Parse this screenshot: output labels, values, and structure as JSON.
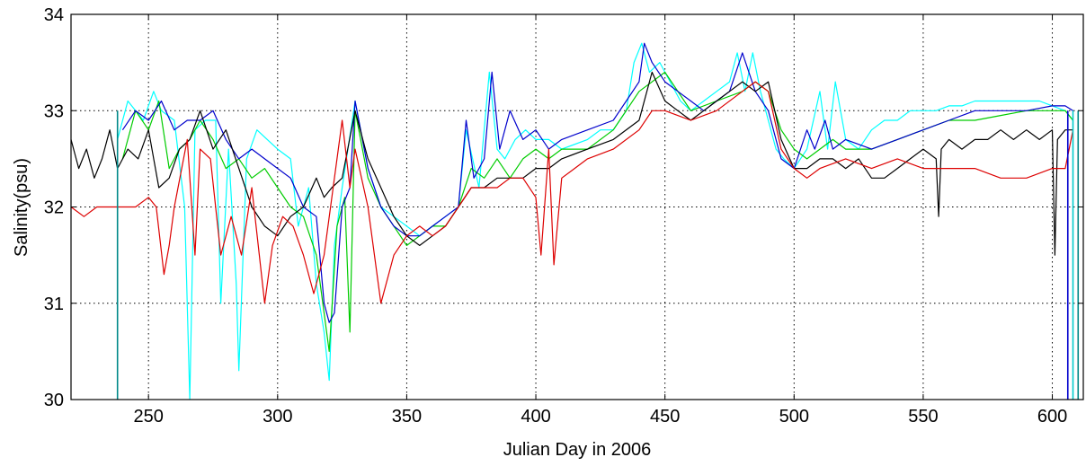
{
  "chart_data": {
    "type": "line",
    "title": "",
    "xlabel": "Julian Day in 2006",
    "ylabel": "Salinity(psu)",
    "xlim": [
      220,
      612
    ],
    "ylim": [
      30,
      34
    ],
    "xticks": [
      250,
      300,
      350,
      400,
      450,
      500,
      550,
      600
    ],
    "yticks": [
      30,
      31,
      32,
      33,
      34
    ],
    "xtick_labels": [
      "250",
      "300",
      "350",
      "400",
      "450",
      "500",
      "550",
      "600"
    ],
    "ytick_labels": [
      "30",
      "31",
      "32",
      "33",
      "34"
    ],
    "grid": true,
    "legend": false,
    "series": [
      {
        "color": "#00ffff",
        "x": [
          238,
          242,
          248,
          252,
          255,
          260,
          264,
          266,
          268,
          272,
          276,
          278,
          281,
          284,
          285,
          288,
          292,
          296,
          300,
          305,
          308,
          312,
          315,
          318,
          320,
          322,
          325,
          330,
          335,
          340,
          345,
          350,
          355,
          360,
          365,
          370,
          373,
          378,
          382,
          385,
          388,
          392,
          396,
          400,
          405,
          410,
          420,
          425,
          430,
          435,
          438,
          441,
          444,
          448,
          452,
          456,
          460,
          465,
          470,
          475,
          478,
          481,
          484,
          487,
          490,
          493,
          496,
          500,
          505,
          510,
          513,
          516,
          520,
          525,
          530,
          535,
          540,
          545,
          550,
          555,
          560,
          565,
          570,
          575,
          580,
          585,
          590,
          595,
          600,
          605,
          608
        ],
        "y": [
          32.7,
          33.1,
          32.9,
          33.2,
          33.0,
          32.9,
          32.0,
          30.0,
          32.8,
          32.9,
          32.9,
          31.0,
          32.6,
          31.2,
          30.3,
          32.5,
          32.8,
          32.7,
          32.6,
          32.5,
          31.8,
          32.2,
          31.2,
          30.7,
          30.2,
          31.6,
          32.2,
          33.1,
          32.4,
          32.0,
          31.9,
          31.8,
          31.7,
          31.8,
          31.9,
          32.0,
          32.8,
          32.2,
          33.4,
          32.6,
          32.5,
          32.7,
          32.8,
          32.7,
          32.7,
          32.6,
          32.7,
          32.8,
          32.8,
          33.0,
          33.5,
          33.7,
          33.4,
          33.5,
          33.3,
          33.1,
          33.0,
          33.1,
          33.2,
          33.3,
          33.6,
          33.2,
          33.6,
          33.2,
          32.9,
          32.6,
          32.5,
          32.4,
          32.6,
          33.2,
          32.6,
          33.3,
          32.7,
          32.6,
          32.8,
          32.9,
          32.9,
          33.0,
          33.0,
          33.0,
          33.05,
          33.05,
          33.1,
          33.1,
          33.1,
          33.1,
          33.1,
          33.1,
          33.05,
          33.0,
          32.9
        ]
      },
      {
        "color": "#00cc00",
        "x": [
          240,
          245,
          250,
          254,
          258,
          262,
          266,
          270,
          275,
          280,
          285,
          290,
          295,
          300,
          305,
          310,
          315,
          320,
          323,
          326,
          328,
          330,
          335,
          340,
          345,
          350,
          355,
          360,
          365,
          370,
          375,
          380,
          385,
          390,
          395,
          400,
          405,
          410,
          420,
          430,
          440,
          450,
          460,
          470,
          480,
          485,
          490,
          495,
          500,
          505,
          510,
          515,
          520,
          530,
          540,
          550,
          560,
          570,
          580,
          590,
          600,
          605,
          608
        ],
        "y": [
          32.5,
          33.0,
          32.8,
          33.1,
          32.4,
          32.6,
          32.7,
          32.9,
          32.7,
          32.4,
          32.5,
          32.3,
          32.4,
          32.2,
          32.0,
          31.9,
          31.5,
          30.5,
          31.8,
          32.1,
          30.7,
          33.0,
          32.3,
          32.0,
          31.8,
          31.6,
          31.7,
          31.8,
          31.8,
          32.0,
          32.4,
          32.3,
          32.5,
          32.3,
          32.5,
          32.6,
          32.5,
          32.6,
          32.6,
          32.8,
          33.2,
          33.4,
          33.0,
          33.1,
          33.2,
          33.3,
          33.2,
          32.8,
          32.6,
          32.5,
          32.6,
          32.7,
          32.6,
          32.6,
          32.7,
          32.8,
          32.9,
          32.9,
          32.95,
          33.0,
          33.0,
          33.0,
          32.9
        ]
      },
      {
        "color": "#0000cc",
        "x": [
          240,
          245,
          250,
          255,
          260,
          265,
          270,
          275,
          280,
          285,
          290,
          295,
          300,
          305,
          310,
          315,
          318,
          320,
          322,
          325,
          328,
          330,
          335,
          340,
          345,
          350,
          355,
          360,
          365,
          370,
          373,
          376,
          380,
          383,
          386,
          390,
          395,
          400,
          405,
          410,
          420,
          430,
          435,
          440,
          442,
          445,
          450,
          455,
          460,
          465,
          470,
          475,
          480,
          485,
          490,
          495,
          500,
          505,
          508,
          512,
          515,
          520,
          530,
          540,
          550,
          560,
          570,
          580,
          590,
          600,
          605,
          608
        ],
        "y": [
          32.8,
          33.0,
          32.9,
          33.1,
          32.8,
          32.9,
          32.9,
          33.0,
          32.7,
          32.5,
          32.6,
          32.5,
          32.4,
          32.3,
          32.0,
          31.9,
          31.0,
          30.8,
          30.9,
          32.0,
          32.2,
          33.1,
          32.4,
          32.0,
          31.8,
          31.7,
          31.7,
          31.8,
          31.9,
          32.0,
          32.9,
          32.3,
          32.5,
          33.4,
          32.6,
          33.0,
          32.7,
          32.8,
          32.6,
          32.7,
          32.8,
          32.9,
          33.1,
          33.3,
          33.7,
          33.5,
          33.3,
          33.2,
          33.1,
          33.0,
          33.1,
          33.2,
          33.6,
          33.2,
          33.0,
          32.5,
          32.4,
          32.8,
          32.6,
          32.9,
          32.6,
          32.7,
          32.6,
          32.7,
          32.8,
          32.9,
          33.0,
          33.0,
          33.0,
          33.05,
          33.05,
          33.0
        ]
      },
      {
        "color": "#000000",
        "x": [
          220,
          223,
          226,
          229,
          232,
          235,
          238,
          242,
          246,
          250,
          254,
          258,
          262,
          266,
          270,
          275,
          280,
          285,
          290,
          295,
          300,
          305,
          310,
          315,
          318,
          321,
          325,
          330,
          335,
          340,
          345,
          350,
          355,
          360,
          365,
          370,
          375,
          380,
          385,
          390,
          395,
          400,
          405,
          410,
          420,
          430,
          440,
          445,
          450,
          455,
          460,
          465,
          470,
          475,
          480,
          485,
          490,
          495,
          500,
          505,
          510,
          515,
          520,
          525,
          530,
          535,
          540,
          545,
          550,
          555,
          556,
          557,
          560,
          565,
          570,
          575,
          580,
          585,
          590,
          595,
          600,
          601,
          602,
          605,
          608
        ],
        "y": [
          32.7,
          32.4,
          32.6,
          32.3,
          32.5,
          32.8,
          32.4,
          32.6,
          32.5,
          32.8,
          32.2,
          32.3,
          32.6,
          32.7,
          33.0,
          32.6,
          32.8,
          32.4,
          32.0,
          31.8,
          31.7,
          31.9,
          32.0,
          32.3,
          32.1,
          32.2,
          32.3,
          33.0,
          32.5,
          32.2,
          31.9,
          31.7,
          31.6,
          31.7,
          31.8,
          32.0,
          32.2,
          32.2,
          32.3,
          32.3,
          32.3,
          32.4,
          32.4,
          32.5,
          32.6,
          32.7,
          32.9,
          33.4,
          33.1,
          33.0,
          32.9,
          33.0,
          33.1,
          33.2,
          33.3,
          33.2,
          33.3,
          32.7,
          32.4,
          32.4,
          32.5,
          32.5,
          32.4,
          32.5,
          32.3,
          32.3,
          32.4,
          32.5,
          32.6,
          32.5,
          31.9,
          32.6,
          32.7,
          32.6,
          32.7,
          32.7,
          32.8,
          32.7,
          32.8,
          32.7,
          32.8,
          31.5,
          32.7,
          32.8,
          32.8
        ]
      },
      {
        "color": "#dd0000",
        "x": [
          220,
          225,
          230,
          235,
          240,
          245,
          250,
          253,
          256,
          258,
          260,
          265,
          268,
          270,
          274,
          278,
          282,
          286,
          290,
          295,
          298,
          302,
          306,
          310,
          314,
          318,
          322,
          325,
          328,
          330,
          335,
          340,
          345,
          350,
          355,
          360,
          365,
          370,
          375,
          380,
          385,
          390,
          395,
          400,
          402,
          405,
          407,
          410,
          420,
          430,
          440,
          445,
          450,
          460,
          470,
          480,
          485,
          490,
          495,
          500,
          505,
          510,
          520,
          530,
          540,
          550,
          560,
          570,
          580,
          590,
          600,
          605,
          608
        ],
        "y": [
          32.0,
          31.9,
          32.0,
          32.0,
          32.0,
          32.0,
          32.1,
          32.0,
          31.3,
          31.6,
          32.0,
          32.7,
          31.5,
          32.6,
          32.5,
          31.5,
          31.9,
          31.5,
          32.2,
          31.0,
          31.6,
          31.9,
          31.8,
          31.5,
          31.1,
          31.5,
          32.3,
          32.9,
          32.2,
          32.6,
          32.0,
          31.0,
          31.5,
          31.7,
          31.8,
          31.7,
          31.8,
          32.0,
          32.2,
          32.2,
          32.2,
          32.3,
          32.3,
          32.1,
          31.5,
          32.6,
          31.4,
          32.3,
          32.5,
          32.6,
          32.8,
          33.0,
          33.0,
          32.9,
          33.0,
          33.2,
          33.3,
          33.2,
          32.6,
          32.4,
          32.3,
          32.4,
          32.5,
          32.4,
          32.5,
          32.4,
          32.4,
          32.4,
          32.3,
          32.3,
          32.4,
          32.4,
          32.8
        ]
      }
    ],
    "vertical_lines": [
      {
        "x": 238,
        "color": "#008888"
      },
      {
        "x": 606,
        "color": "#0000cc"
      },
      {
        "x": 608,
        "color": "#00cccc"
      },
      {
        "x": 610,
        "color": "#008888"
      }
    ]
  }
}
